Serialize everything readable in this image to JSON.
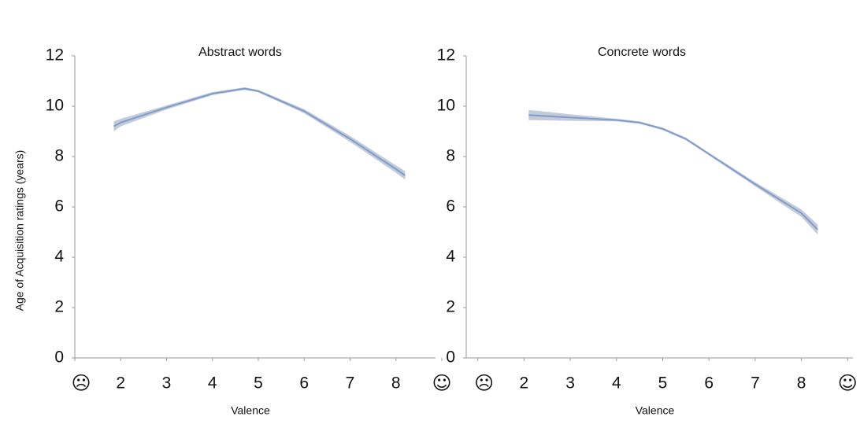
{
  "chart_data": [
    {
      "type": "line",
      "title": "Abstract words",
      "x_label": "Valence",
      "y_label": "Age of Acquisition ratings (years)",
      "x": [
        1.85,
        2,
        3,
        4,
        4.7,
        5,
        6,
        7,
        8,
        8.2
      ],
      "values": [
        9.2,
        9.35,
        9.95,
        10.5,
        10.7,
        10.6,
        9.8,
        8.7,
        7.5,
        7.25
      ],
      "lower": [
        9.0,
        9.2,
        9.87,
        10.44,
        10.65,
        10.55,
        9.72,
        8.58,
        7.35,
        7.08
      ],
      "upper": [
        9.4,
        9.5,
        10.03,
        10.56,
        10.75,
        10.65,
        9.88,
        8.82,
        7.65,
        7.42
      ],
      "color": "#7f9ccf",
      "band_color": "#b9c3d0",
      "xlim": [
        1,
        9
      ],
      "xticks": [
        {
          "value": 1,
          "label": "☹"
        },
        2,
        3,
        4,
        5,
        6,
        7,
        8,
        {
          "value": 9,
          "label": "☺"
        }
      ],
      "ylim": [
        0,
        12
      ],
      "yticks": [
        0,
        2,
        4,
        6,
        8,
        10,
        12
      ]
    },
    {
      "type": "line",
      "title": "Concrete words",
      "x_label": "Valence",
      "x": [
        2.1,
        3,
        4,
        4.5,
        5,
        5.5,
        6,
        7,
        8,
        8.35
      ],
      "values": [
        9.65,
        9.55,
        9.45,
        9.35,
        9.1,
        8.7,
        8.1,
        6.9,
        5.75,
        5.1
      ],
      "lower": [
        9.45,
        9.42,
        9.4,
        9.3,
        9.05,
        8.65,
        8.05,
        6.82,
        5.6,
        4.9
      ],
      "upper": [
        9.85,
        9.68,
        9.5,
        9.4,
        9.15,
        8.75,
        8.15,
        6.98,
        5.9,
        5.3
      ],
      "color": "#7f9ccf",
      "band_color": "#b9c3d0",
      "xlim": [
        0.75,
        9.25
      ],
      "xticks": [
        {
          "value": 1,
          "label": "☹"
        },
        2,
        3,
        4,
        5,
        6,
        7,
        8,
        {
          "value": 9,
          "label": "☺"
        }
      ],
      "ylim": [
        0,
        12
      ],
      "yticks": [
        0,
        2,
        4,
        6,
        8,
        10,
        12
      ]
    }
  ]
}
